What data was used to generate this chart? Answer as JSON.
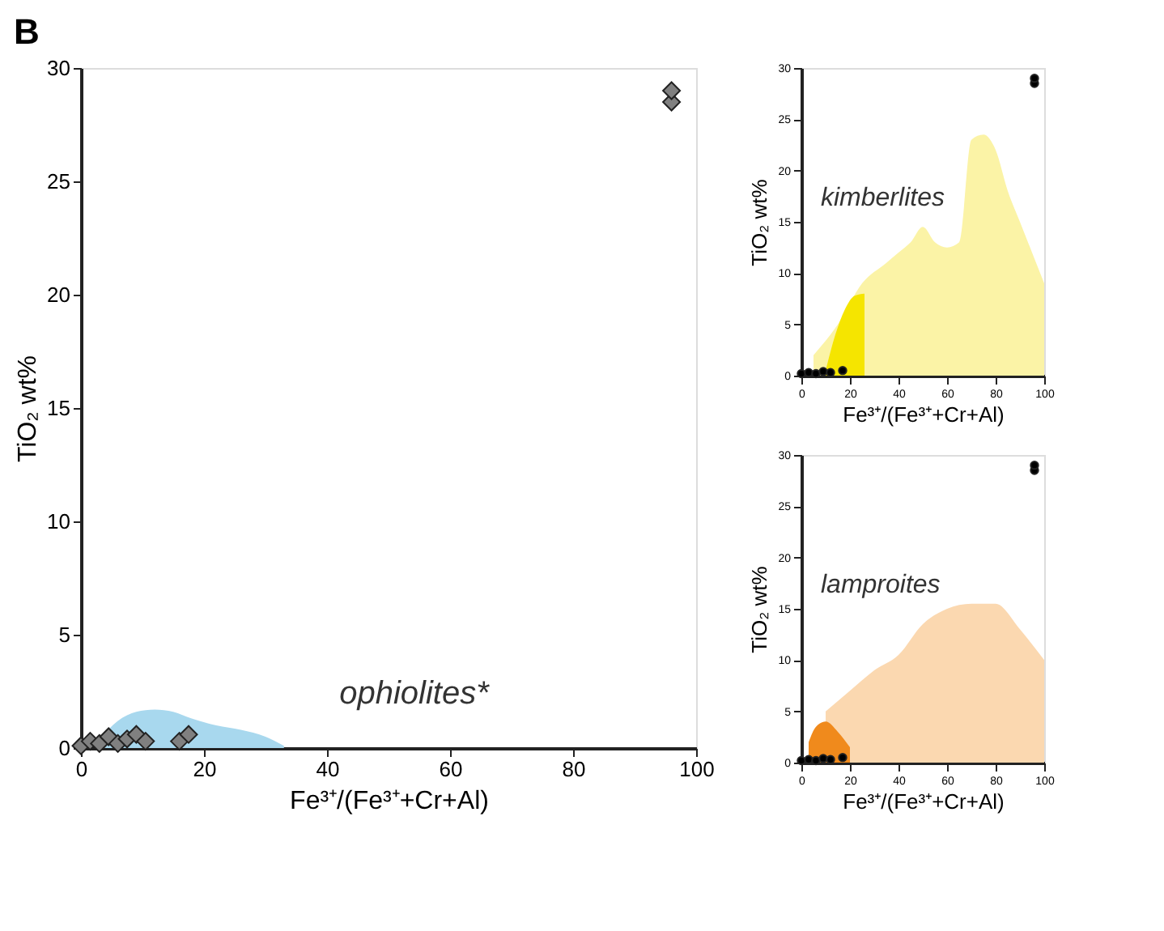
{
  "chart_data": [
    {
      "type": "scatter",
      "title": "B",
      "xlabel": "Fe³⁺/(Fe³⁺+Cr+Al)",
      "ylabel": "TiO₂ wt%",
      "xlim": [
        0,
        100
      ],
      "xticks": [
        0,
        20,
        40,
        60,
        80,
        100
      ],
      "ylim": [
        0,
        30
      ],
      "yticks": [
        0,
        5,
        10,
        15,
        20,
        25,
        30
      ],
      "grid": false,
      "legend": false,
      "annotations": [
        "ophiolites*"
      ],
      "series": [
        {
          "type": "area",
          "color": "#a8d8ee",
          "x": [
            3,
            6,
            9,
            12,
            15,
            18,
            22,
            26,
            30,
            33
          ],
          "values": [
            0.4,
            1.2,
            1.6,
            1.7,
            1.6,
            1.3,
            1.0,
            0.8,
            0.5,
            0.1
          ]
        },
        {
          "type": "scatter",
          "marker": "diamond",
          "color": "#808080",
          "x": [
            0,
            1.5,
            3,
            4.5,
            6,
            7.5,
            9,
            10.5,
            16,
            17.5,
            96,
            96
          ],
          "values": [
            0.1,
            0.3,
            0.2,
            0.5,
            0.2,
            0.4,
            0.6,
            0.3,
            0.3,
            0.6,
            28.5,
            29
          ]
        }
      ]
    },
    {
      "type": "scatter",
      "xlabel": "Fe³⁺/(Fe³⁺+Cr+Al)",
      "ylabel": "TiO₂ wt%",
      "xlim": [
        0,
        100
      ],
      "xticks": [
        0,
        20,
        40,
        60,
        80,
        100
      ],
      "ylim": [
        0,
        30
      ],
      "yticks": [
        0,
        5,
        10,
        15,
        20,
        25,
        30
      ],
      "grid": false,
      "legend": false,
      "annotations": [
        "kimberlites"
      ],
      "series": [
        {
          "type": "area",
          "color": "#fbf3a6",
          "x": [
            5,
            15,
            25,
            35,
            40,
            45,
            50,
            55,
            60,
            65,
            70,
            75,
            80,
            85,
            90,
            95,
            100
          ],
          "values": [
            2,
            5,
            9,
            11,
            12,
            13,
            14.5,
            13,
            12.5,
            13,
            23,
            23.5,
            22,
            18,
            15,
            12,
            9
          ]
        },
        {
          "type": "area",
          "color": "#f5e500",
          "x": [
            10,
            14,
            18,
            22,
            26
          ],
          "values": [
            0.5,
            4,
            6.5,
            7.8,
            8
          ]
        },
        {
          "type": "scatter",
          "marker": "circle",
          "color": "#000000",
          "x": [
            0,
            3,
            6,
            9,
            12,
            17,
            96,
            96
          ],
          "values": [
            0.2,
            0.3,
            0.2,
            0.4,
            0.3,
            0.5,
            28.5,
            29
          ]
        }
      ]
    },
    {
      "type": "scatter",
      "xlabel": "Fe³⁺/(Fe³⁺+Cr+Al)",
      "ylabel": "TiO₂ wt%",
      "xlim": [
        0,
        100
      ],
      "xticks": [
        0,
        20,
        40,
        60,
        80,
        100
      ],
      "ylim": [
        0,
        30
      ],
      "yticks": [
        0,
        5,
        10,
        15,
        20,
        25,
        30
      ],
      "grid": false,
      "legend": false,
      "annotations": [
        "lamproites"
      ],
      "series": [
        {
          "type": "area",
          "color": "#fbd8b0",
          "x": [
            10,
            20,
            30,
            40,
            50,
            60,
            70,
            80,
            90,
            100
          ],
          "values": [
            5,
            7,
            9,
            10.5,
            13.5,
            15,
            15.5,
            15.5,
            13,
            10
          ]
        },
        {
          "type": "area",
          "color": "#f08a1c",
          "x": [
            3,
            6,
            10,
            15,
            20
          ],
          "values": [
            2,
            3.5,
            4,
            3,
            1.5
          ]
        },
        {
          "type": "scatter",
          "marker": "circle",
          "color": "#000000",
          "x": [
            0,
            3,
            6,
            9,
            12,
            17,
            96,
            96
          ],
          "values": [
            0.2,
            0.3,
            0.2,
            0.4,
            0.3,
            0.5,
            28.5,
            29
          ]
        }
      ]
    }
  ]
}
